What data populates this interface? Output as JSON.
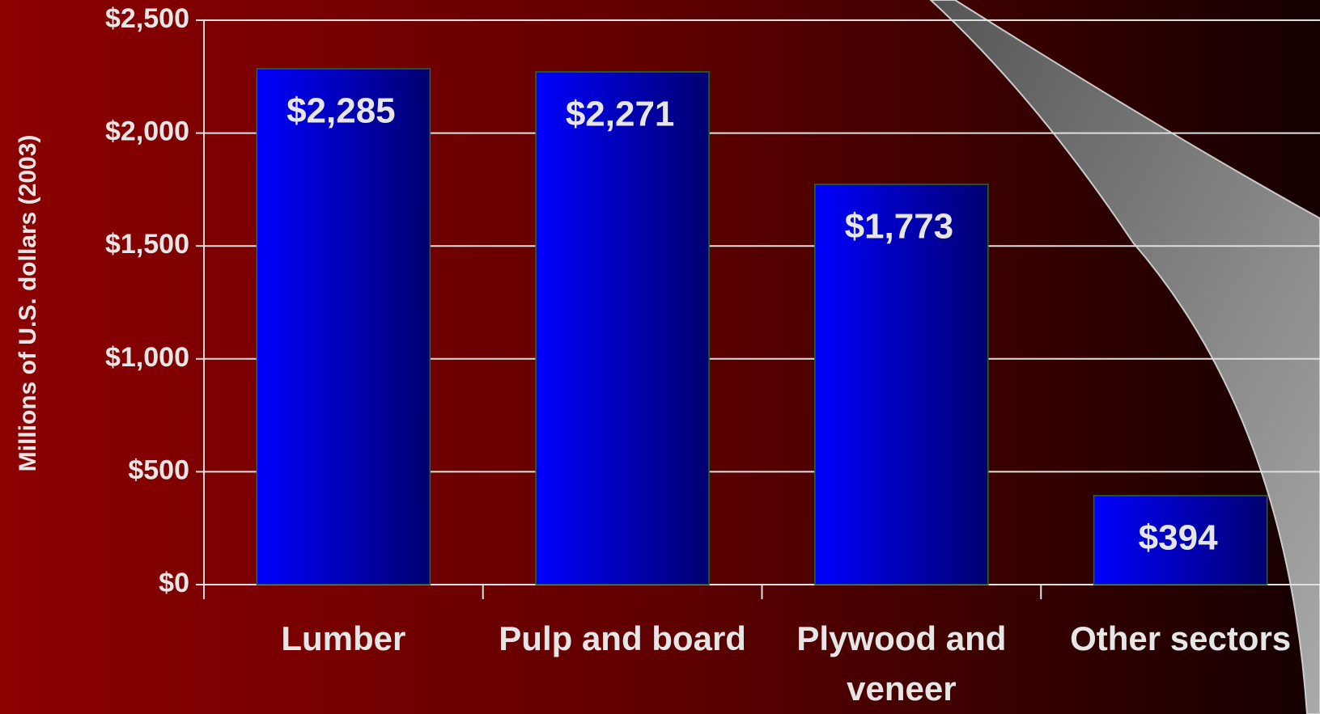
{
  "chart_data": {
    "type": "bar",
    "y_label": "Millions of U.S. dollars (2003)",
    "categories": [
      "Lumber",
      "Pulp and board",
      "Plywood and veneer",
      "Other sectors"
    ],
    "values": [
      2285,
      2271,
      1773,
      394
    ],
    "value_labels": [
      "$2,285",
      "$2,271",
      "$1,773",
      "$394"
    ],
    "color": "#0000ff",
    "ylim": [
      0,
      2500
    ],
    "yticks": [
      {
        "value": 0,
        "label": "$0"
      },
      {
        "value": 500,
        "label": "$500"
      },
      {
        "value": 1000,
        "label": "$1,000"
      },
      {
        "value": 1500,
        "label": "$1,500"
      },
      {
        "value": 2000,
        "label": "$2,000"
      },
      {
        "value": 2500,
        "label": "$2,500"
      }
    ],
    "grid": true
  }
}
